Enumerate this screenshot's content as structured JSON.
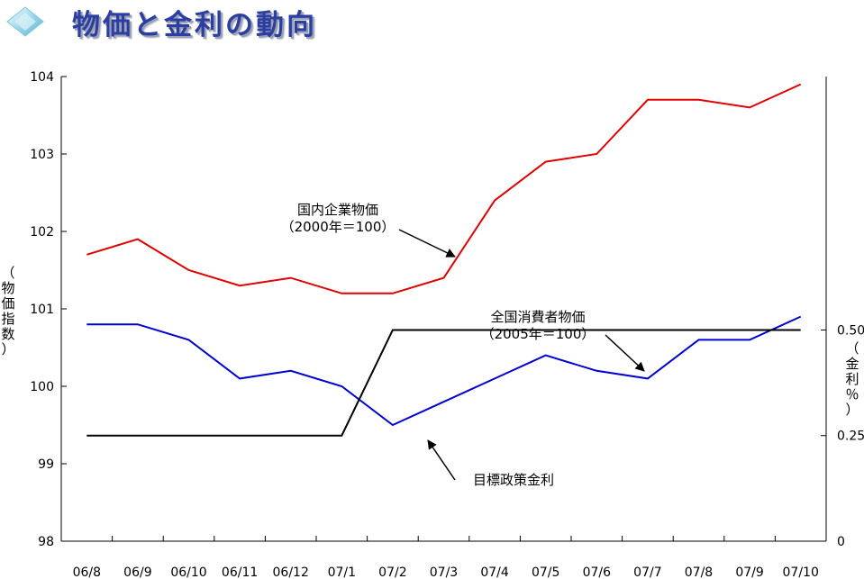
{
  "title": "物価と金利の動向",
  "icon": "diamond-logo-icon",
  "chart_data": {
    "type": "line",
    "categories": [
      "06/8",
      "06/9",
      "06/10",
      "06/11",
      "06/12",
      "07/1",
      "07/2",
      "07/3",
      "07/4",
      "07/5",
      "07/6",
      "07/7",
      "07/8",
      "07/9",
      "07/10"
    ],
    "left_axis": {
      "label": "（物価指数）",
      "range": [
        98,
        104
      ],
      "ticks": [
        "98",
        "99",
        "100",
        "101",
        "102",
        "103",
        "104"
      ]
    },
    "right_axis": {
      "label": "（金利％）",
      "range": [
        0,
        1.1
      ],
      "ticks": [
        "0",
        "0.25",
        "0.50"
      ]
    },
    "grid": false,
    "series": [
      {
        "name": "国内企業物価",
        "axis": "left",
        "color": "#e00000",
        "values": [
          101.7,
          101.9,
          101.5,
          101.3,
          101.4,
          101.2,
          101.2,
          101.4,
          102.4,
          102.9,
          103.0,
          103.7,
          103.7,
          103.6,
          103.9
        ]
      },
      {
        "name": "全国消費者物価",
        "axis": "left",
        "color": "#0000d0",
        "values": [
          100.8,
          100.8,
          100.6,
          100.1,
          100.2,
          100.0,
          99.5,
          99.8,
          100.1,
          100.4,
          100.2,
          100.1,
          100.6,
          100.6,
          100.9
        ]
      },
      {
        "name": "目標政策金利",
        "axis": "right",
        "color": "#000000",
        "values": [
          0.25,
          0.25,
          0.25,
          0.25,
          0.25,
          0.25,
          0.5,
          0.5,
          0.5,
          0.5,
          0.5,
          0.5,
          0.5,
          0.5,
          0.5
        ]
      }
    ],
    "annotations": [
      {
        "series": "国内企業物価",
        "lines": [
          "国内企業物価",
          "（2000年＝100）"
        ]
      },
      {
        "series": "全国消費者物価",
        "lines": [
          "全国消費者物価",
          "（2005年＝100）"
        ]
      },
      {
        "series": "目標政策金利",
        "lines": [
          "目標政策金利"
        ]
      }
    ]
  }
}
